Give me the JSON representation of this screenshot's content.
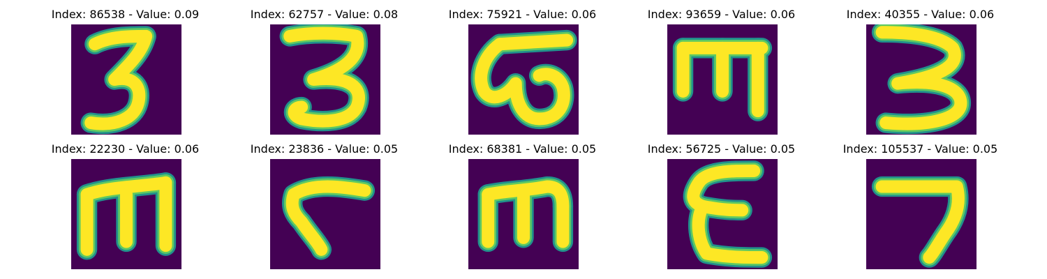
{
  "figure": {
    "colors": {
      "background": "#440154",
      "stroke_edge": "#21918c",
      "stroke_mid": "#5ec962",
      "stroke_core": "#fde725"
    },
    "panels": [
      {
        "title": "Index: 86538 - Value: 0.09",
        "index": 86538,
        "value": 0.09,
        "glyph": "3"
      },
      {
        "title": "Index: 62757 - Value: 0.08",
        "index": 62757,
        "value": 0.08,
        "glyph": "3"
      },
      {
        "title": "Index: 75921 - Value: 0.06",
        "index": 75921,
        "value": 0.06,
        "glyph": "ω"
      },
      {
        "title": "Index: 93659 - Value: 0.06",
        "index": 93659,
        "value": 0.06,
        "glyph": "m"
      },
      {
        "title": "Index: 40355 - Value: 0.06",
        "index": 40355,
        "value": 0.06,
        "glyph": "3"
      },
      {
        "title": "Index: 22230 - Value: 0.06",
        "index": 22230,
        "value": 0.06,
        "glyph": "m"
      },
      {
        "title": "Index: 23836 - Value: 0.05",
        "index": 23836,
        "value": 0.05,
        "glyph": "ᒉ"
      },
      {
        "title": "Index: 68381 - Value: 0.05",
        "index": 68381,
        "value": 0.05,
        "glyph": "m"
      },
      {
        "title": "Index: 56725 - Value: 0.05",
        "index": 56725,
        "value": 0.05,
        "glyph": "ε"
      },
      {
        "title": "Index: 105537 - Value: 0.05",
        "index": 105537,
        "value": 0.05,
        "glyph": "7"
      }
    ]
  }
}
